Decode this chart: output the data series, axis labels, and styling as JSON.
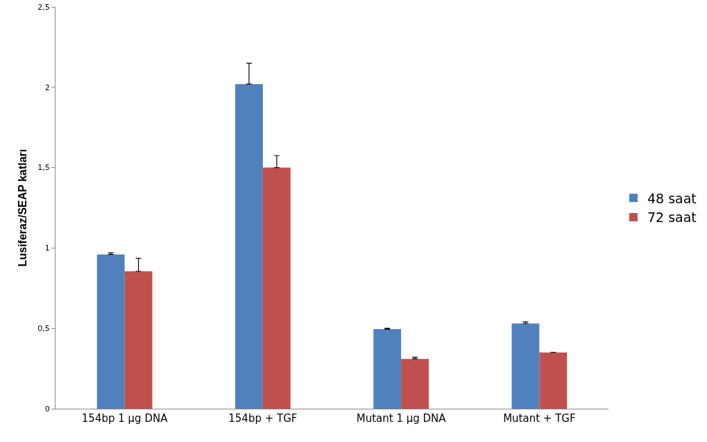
{
  "chart_data": {
    "type": "bar",
    "ylabel": "Lusiferaz/SEAP katları",
    "categories": [
      "154bp 1 µg DNA",
      "154bp + TGF",
      "Mutant 1 µg DNA",
      "Mutant + TGF"
    ],
    "series": [
      {
        "name": "48 saat",
        "color": "#4f81bd",
        "values": [
          0.96,
          2.02,
          0.495,
          0.53
        ],
        "errors": [
          [
            0.96,
            0.97
          ],
          [
            2.02,
            2.15
          ],
          [
            0.495,
            0.5
          ],
          [
            0.53,
            0.54
          ]
        ]
      },
      {
        "name": "72 saat",
        "color": "#c0504d",
        "values": [
          0.855,
          1.5,
          0.31,
          0.35
        ],
        "errors": [
          [
            0.855,
            0.935
          ],
          [
            1.5,
            1.575
          ],
          [
            0.31,
            0.32
          ],
          null
        ]
      }
    ],
    "ylim": [
      0,
      2.5
    ],
    "yticks": [
      0,
      {
        "value": 0.5,
        "label": "0,5"
      },
      1,
      {
        "value": 1.5,
        "label": "1,5"
      },
      2,
      {
        "value": 2.5,
        "label": "2,5"
      }
    ],
    "grid": false,
    "legend": "right"
  }
}
